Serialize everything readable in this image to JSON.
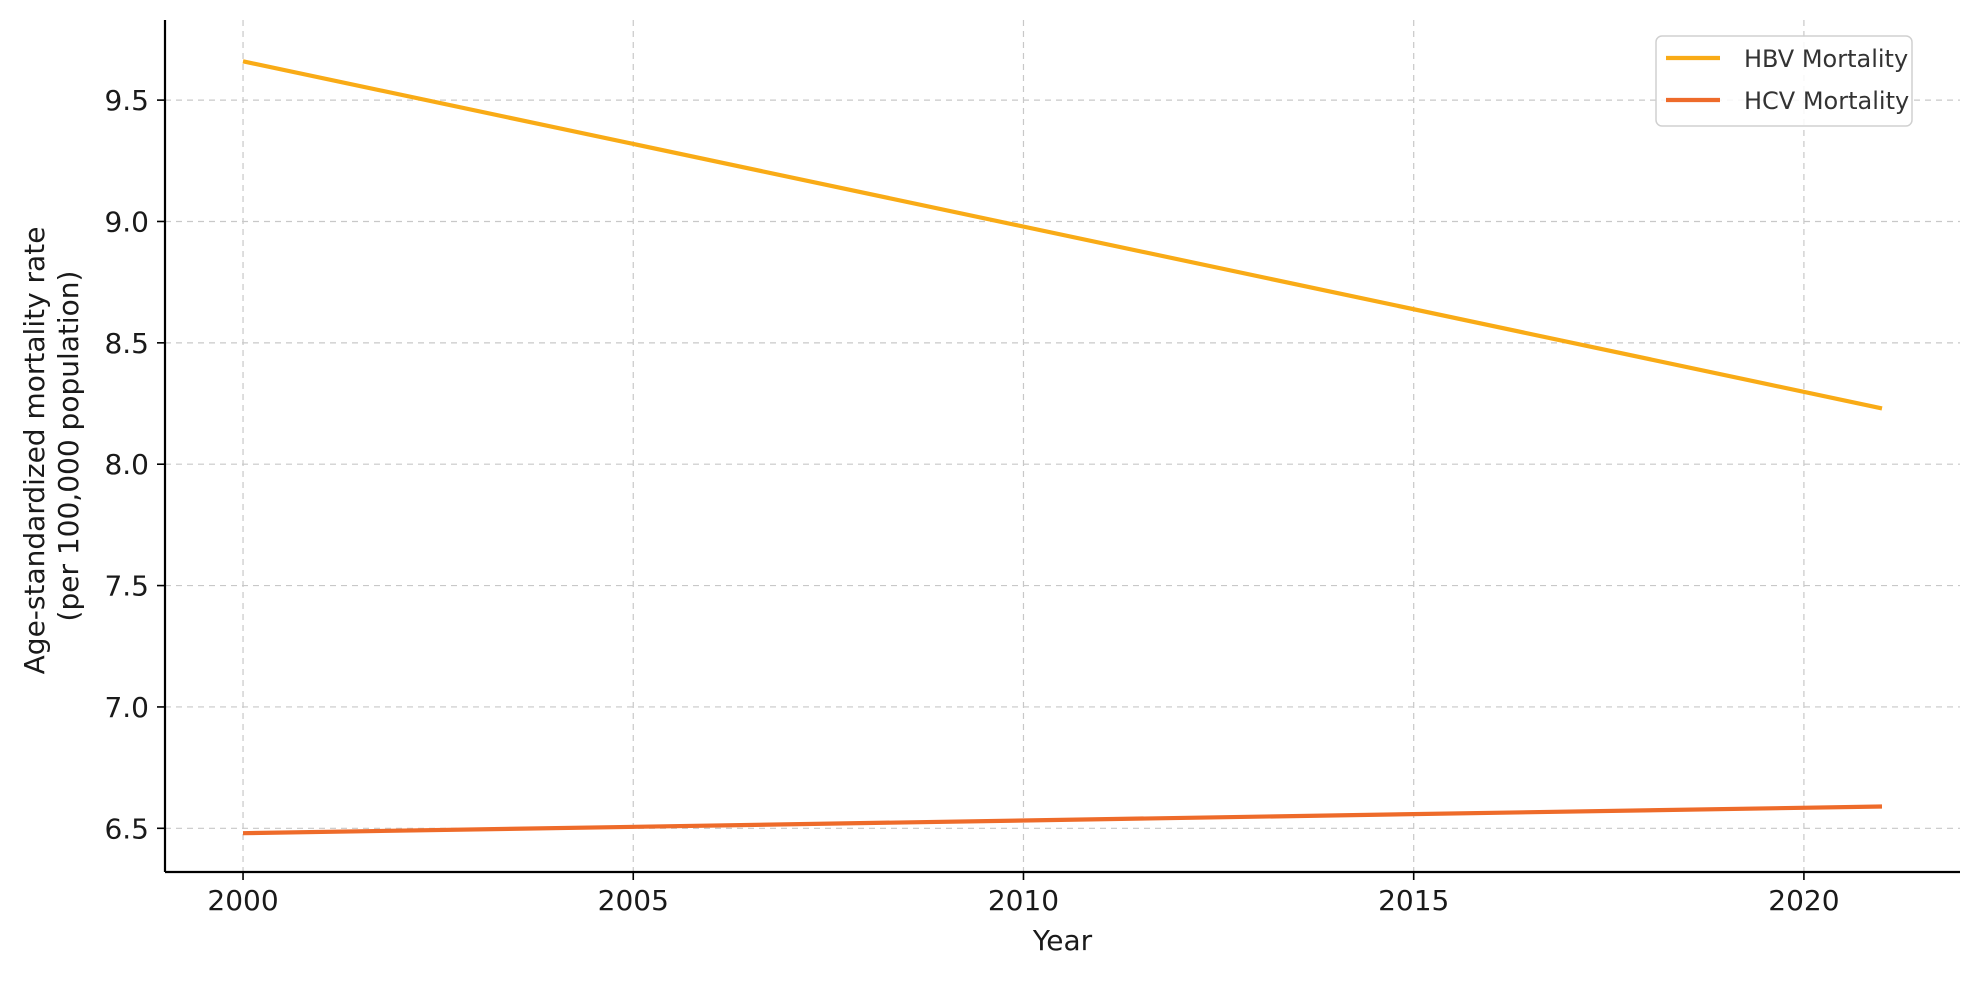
{
  "chart_data": {
    "type": "line",
    "title": "",
    "xlabel": "Year",
    "ylabel_lines": [
      "Age-standardized mortality rate",
      "(per 100,000 population)"
    ],
    "xlim": [
      1999,
      2022
    ],
    "ylim": [
      6.32,
      9.83
    ],
    "x_ticks": [
      2000,
      2005,
      2010,
      2015,
      2020
    ],
    "y_ticks": [
      6.5,
      7.0,
      7.5,
      8.0,
      8.5,
      9.0,
      9.5
    ],
    "y_tick_labels": [
      "6.5",
      "7.0",
      "7.5",
      "8.0",
      "8.5",
      "9.0",
      "9.5"
    ],
    "grid": true,
    "legend_position": "top-right",
    "x": [
      2000,
      2021
    ],
    "series": [
      {
        "name": "HBV Mortality",
        "color": "#f9ab16",
        "values": [
          9.66,
          8.23
        ]
      },
      {
        "name": "HCV Mortality",
        "color": "#ee6b2a",
        "values": [
          6.48,
          6.59
        ]
      }
    ]
  }
}
